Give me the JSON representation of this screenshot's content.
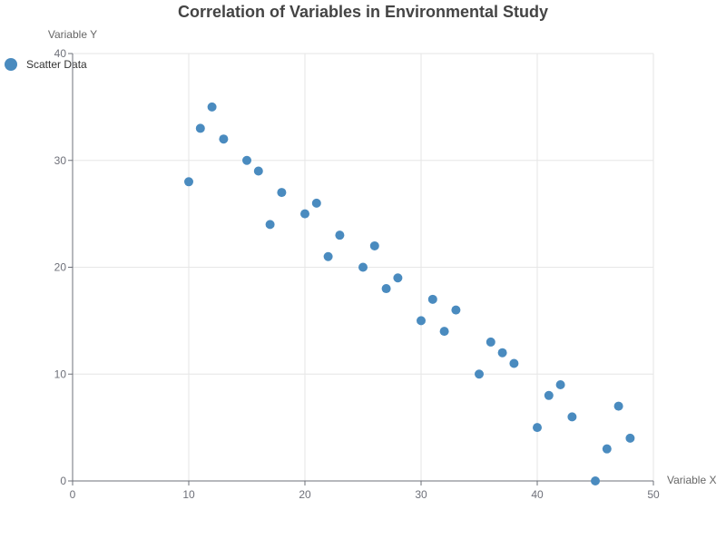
{
  "chart_data": {
    "type": "scatter",
    "title": "Correlation of Variables in Environmental Study",
    "xlabel": "Variable X",
    "ylabel": "Variable Y",
    "xlim": [
      0,
      50
    ],
    "ylim": [
      0,
      40
    ],
    "xticks": [
      0,
      10,
      20,
      30,
      40,
      50
    ],
    "yticks": [
      0,
      10,
      20,
      30,
      40
    ],
    "grid": true,
    "legend_position": "top-left",
    "series": [
      {
        "name": "Scatter Data",
        "color": "#4a8bbf",
        "points": [
          {
            "x": 10,
            "y": 28
          },
          {
            "x": 11,
            "y": 33
          },
          {
            "x": 12,
            "y": 35
          },
          {
            "x": 13,
            "y": 32
          },
          {
            "x": 15,
            "y": 30
          },
          {
            "x": 16,
            "y": 29
          },
          {
            "x": 17,
            "y": 24
          },
          {
            "x": 18,
            "y": 27
          },
          {
            "x": 20,
            "y": 25
          },
          {
            "x": 21,
            "y": 26
          },
          {
            "x": 22,
            "y": 21
          },
          {
            "x": 23,
            "y": 23
          },
          {
            "x": 25,
            "y": 20
          },
          {
            "x": 26,
            "y": 22
          },
          {
            "x": 27,
            "y": 18
          },
          {
            "x": 28,
            "y": 19
          },
          {
            "x": 30,
            "y": 15
          },
          {
            "x": 31,
            "y": 17
          },
          {
            "x": 32,
            "y": 14
          },
          {
            "x": 33,
            "y": 16
          },
          {
            "x": 35,
            "y": 10
          },
          {
            "x": 36,
            "y": 13
          },
          {
            "x": 37,
            "y": 12
          },
          {
            "x": 38,
            "y": 11
          },
          {
            "x": 40,
            "y": 5
          },
          {
            "x": 41,
            "y": 8
          },
          {
            "x": 42,
            "y": 9
          },
          {
            "x": 43,
            "y": 6
          },
          {
            "x": 45,
            "y": 0
          },
          {
            "x": 46,
            "y": 3
          },
          {
            "x": 47,
            "y": 7
          },
          {
            "x": 48,
            "y": 4
          }
        ]
      }
    ]
  }
}
